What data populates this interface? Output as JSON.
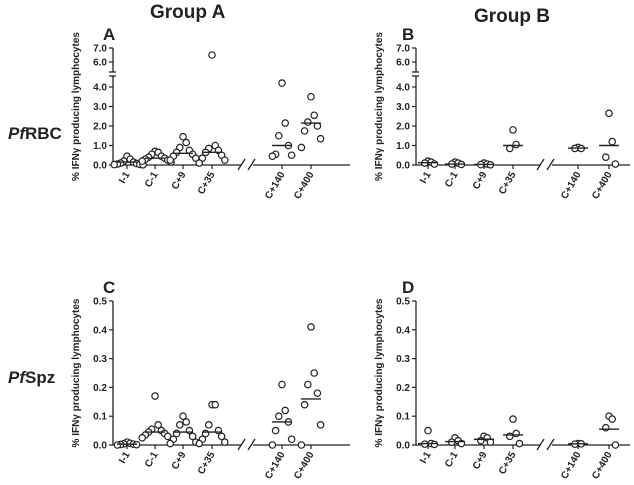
{
  "headers": {
    "group_a": "Group A",
    "group_b": "Group B",
    "row_1_prefix": "Pf",
    "row_1_suffix": "RBC",
    "row_2_prefix": "Pf",
    "row_2_suffix": "Spz"
  },
  "chart_data": [
    {
      "type": "scatter",
      "panel": "A",
      "group": "Group A",
      "antigen": "PfRBC",
      "ylabel": "% IFNγ producing lymphocytes",
      "categories": [
        "I-1",
        "C-1",
        "C+9",
        "C+35",
        "C+140",
        "C+400"
      ],
      "axis_break_between": [
        "C+35",
        "C+140"
      ],
      "ylim": [
        0,
        4.5
      ],
      "y_ticks": [
        "0.0",
        "1.0",
        "2.0",
        "3.0",
        "4.0"
      ],
      "y_break_ticks": [
        "6.0",
        "7.0"
      ],
      "series": [
        {
          "category": "I-1",
          "points": [
            0.45,
            0.3,
            0.2,
            0.15,
            0.1,
            0.08,
            0.05,
            0.03,
            0.02,
            0.01
          ],
          "median": 0.15
        },
        {
          "category": "C-1",
          "points": [
            0.7,
            0.65,
            0.55,
            0.45,
            0.4,
            0.35,
            0.3,
            0.25,
            0.2,
            0.15
          ],
          "median": 0.35
        },
        {
          "category": "C+9",
          "points": [
            1.45,
            1.15,
            0.9,
            0.75,
            0.65,
            0.55,
            0.45,
            0.35,
            0.25
          ],
          "median": 0.6
        },
        {
          "category": "C+35",
          "points": [
            6.5,
            1.0,
            0.85,
            0.75,
            0.65,
            0.5,
            0.35,
            0.25,
            0.1
          ],
          "median": 0.65
        },
        {
          "category": "C+140",
          "points": [
            4.2,
            2.15,
            1.5,
            1.0,
            0.55,
            0.5,
            0.45
          ],
          "median": 1.0
        },
        {
          "category": "C+400",
          "points": [
            3.5,
            2.55,
            2.2,
            2.0,
            1.75,
            1.35,
            0.9
          ],
          "median": 2.15
        }
      ]
    },
    {
      "type": "scatter",
      "panel": "B",
      "group": "Group B",
      "antigen": "PfRBC",
      "ylabel": "% IFNγ producing lymphocytes",
      "categories": [
        "I-1",
        "C-1",
        "C+9",
        "C+35",
        "C+140",
        "C+400"
      ],
      "axis_break_between": [
        "C+35",
        "C+140"
      ],
      "ylim": [
        0,
        4.5
      ],
      "y_ticks": [
        "0.0",
        "1.0",
        "2.0",
        "3.0",
        "4.0"
      ],
      "y_break_ticks": [
        "6.0",
        "7.0"
      ],
      "series": [
        {
          "category": "I-1",
          "points": [
            0.2,
            0.15,
            0.1,
            0.05
          ],
          "median": 0.12
        },
        {
          "category": "C-1",
          "points": [
            0.15,
            0.1,
            0.05,
            0.03
          ],
          "median": 0.05
        },
        {
          "category": "C+9",
          "points": [
            0.1,
            0.05,
            0.02,
            0.01
          ],
          "median": 0.03
        },
        {
          "category": "C+35",
          "points": [
            1.8,
            1.05,
            0.85
          ],
          "median": 1.0
        },
        {
          "category": "C+140",
          "points": [
            0.9,
            0.85,
            0.85
          ],
          "median": 0.87
        },
        {
          "category": "C+400",
          "points": [
            2.65,
            1.2,
            0.4,
            0.05
          ],
          "median": 1.0
        }
      ]
    },
    {
      "type": "scatter",
      "panel": "C",
      "group": "Group A",
      "antigen": "PfSpz",
      "ylabel": "% IFNγ producing lymphocytes",
      "categories": [
        "I-1",
        "C-1",
        "C+9",
        "C+35",
        "C+140",
        "C+400"
      ],
      "axis_break_between": [
        "C+35",
        "C+140"
      ],
      "ylim": [
        0,
        0.5
      ],
      "y_ticks": [
        "0.0",
        "0.1",
        "0.2",
        "0.3",
        "0.4",
        "0.5"
      ],
      "series": [
        {
          "category": "I-1",
          "points": [
            0.01,
            0.006,
            0.004,
            0.003,
            0.002,
            0.001,
            0.0
          ],
          "median": 0.003
        },
        {
          "category": "C-1",
          "points": [
            0.17,
            0.07,
            0.055,
            0.05,
            0.045,
            0.04,
            0.035,
            0.03,
            0.025
          ],
          "median": 0.045
        },
        {
          "category": "C+9",
          "points": [
            0.1,
            0.08,
            0.07,
            0.05,
            0.04,
            0.03,
            0.02,
            0.01,
            0.005
          ],
          "median": 0.045
        },
        {
          "category": "C+35",
          "points": [
            0.14,
            0.14,
            0.07,
            0.05,
            0.04,
            0.03,
            0.02,
            0.01,
            0.005
          ],
          "median": 0.045
        },
        {
          "category": "C+140",
          "points": [
            0.21,
            0.12,
            0.1,
            0.08,
            0.05,
            0.02,
            0.0
          ],
          "median": 0.08
        },
        {
          "category": "C+400",
          "points": [
            0.41,
            0.25,
            0.21,
            0.18,
            0.14,
            0.07,
            0.0
          ],
          "median": 0.16
        }
      ]
    },
    {
      "type": "scatter",
      "panel": "D",
      "group": "Group B",
      "antigen": "PfSpz",
      "ylabel": "% IFNγ producing lymphocytes",
      "categories": [
        "I-1",
        "C-1",
        "C+9",
        "C+35",
        "C+140",
        "C+400"
      ],
      "axis_break_between": [
        "C+35",
        "C+140"
      ],
      "ylim": [
        0,
        0.5
      ],
      "y_ticks": [
        "0.0",
        "0.1",
        "0.2",
        "0.3",
        "0.4",
        "0.5"
      ],
      "series": [
        {
          "category": "I-1",
          "points": [
            0.05,
            0.005,
            0.003,
            0.002
          ],
          "median": 0.005
        },
        {
          "category": "C-1",
          "points": [
            0.025,
            0.015,
            0.01,
            0.005
          ],
          "median": 0.012
        },
        {
          "category": "C+9",
          "points": [
            0.03,
            0.025,
            0.015,
            0.01
          ],
          "median": 0.02
        },
        {
          "category": "C+35",
          "points": [
            0.09,
            0.04,
            0.03,
            0.005
          ],
          "median": 0.035
        },
        {
          "category": "C+140",
          "points": [
            0.005,
            0.004,
            0.003
          ],
          "median": 0.004
        },
        {
          "category": "C+400",
          "points": [
            0.1,
            0.09,
            0.06,
            0.0
          ],
          "median": 0.055
        }
      ]
    }
  ]
}
